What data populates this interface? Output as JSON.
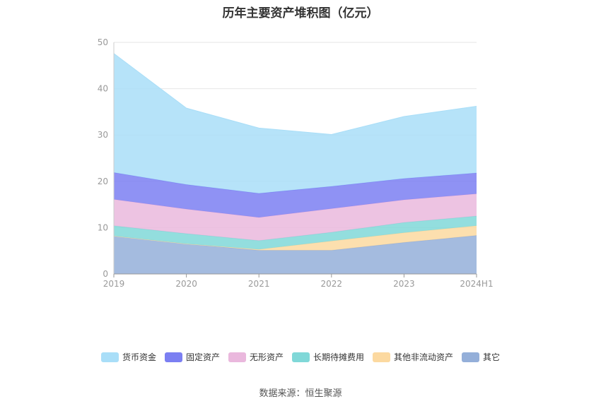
{
  "chart_data": {
    "type": "area",
    "stacked": true,
    "title": "历年主要资产堆积图（亿元）",
    "categories": [
      "2019",
      "2020",
      "2021",
      "2022",
      "2023",
      "2024H1"
    ],
    "ylim": [
      0,
      50
    ],
    "yticks": [
      0,
      10,
      20,
      30,
      40,
      50
    ],
    "grid": true,
    "legend_position": "bottom",
    "series": [
      {
        "name": "其它",
        "color": "#94afd9",
        "values": [
          8.2,
          6.5,
          5.1,
          5.1,
          6.8,
          8.3
        ]
      },
      {
        "name": "其他非流动资产",
        "color": "#fcd9a0",
        "values": [
          0,
          0,
          0.2,
          2.0,
          2.1,
          2.1
        ]
      },
      {
        "name": "长期待摊费用",
        "color": "#80d8d8",
        "values": [
          2.2,
          2.2,
          1.9,
          1.9,
          2.2,
          2.1
        ]
      },
      {
        "name": "无形资产",
        "color": "#eab8dd",
        "values": [
          5.7,
          5.3,
          5.0,
          5.1,
          4.9,
          4.8
        ]
      },
      {
        "name": "固定资产",
        "color": "#7b7ff2",
        "values": [
          5.8,
          5.3,
          5.2,
          4.8,
          4.6,
          4.5
        ]
      },
      {
        "name": "货币资金",
        "color": "#a9def8",
        "values": [
          25.7,
          16.5,
          14.1,
          11.2,
          13.4,
          14.4
        ]
      }
    ]
  },
  "legend": [
    {
      "label": "货币资金",
      "color": "#a9def8"
    },
    {
      "label": "固定资产",
      "color": "#7b7ff2"
    },
    {
      "label": "无形资产",
      "color": "#eab8dd"
    },
    {
      "label": "长期待摊费用",
      "color": "#80d8d8"
    },
    {
      "label": "其他非流动资产",
      "color": "#fcd9a0"
    },
    {
      "label": "其它",
      "color": "#94afd9"
    }
  ],
  "source": "数据来源：恒生聚源"
}
